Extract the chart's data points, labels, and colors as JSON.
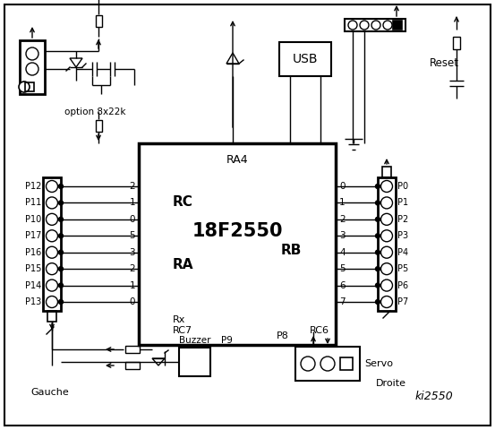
{
  "bg_color": "#ffffff",
  "line_color": "#000000",
  "chip_label": "18F2550",
  "chip_sublabel": "RA4",
  "rc_label": "RC",
  "ra_label": "RA",
  "rb_label": "RB",
  "rc_pins": [
    "2",
    "1",
    "0",
    "5",
    "3",
    "2",
    "1",
    "0"
  ],
  "rb_pins": [
    "0",
    "1",
    "2",
    "3",
    "4",
    "5",
    "6",
    "7"
  ],
  "left_labels": [
    "P12",
    "P11",
    "P10",
    "P17",
    "P16",
    "P15",
    "P14",
    "P13"
  ],
  "right_labels": [
    "P0",
    "P1",
    "P2",
    "P3",
    "P4",
    "P5",
    "P6",
    "P7"
  ],
  "gauche_label": "Gauche",
  "droite_label": "Droite",
  "usb_label": "USB",
  "reset_label": "Reset",
  "option_label": "option 8x22k",
  "rc6_label": "RC6",
  "rc7_label": "RC7",
  "rx_label": "Rx",
  "buzzer_label": "Buzzer",
  "p9_label": "P9",
  "p8_label": "P8",
  "servo_label": "Servo",
  "ki_label": "ki2550"
}
